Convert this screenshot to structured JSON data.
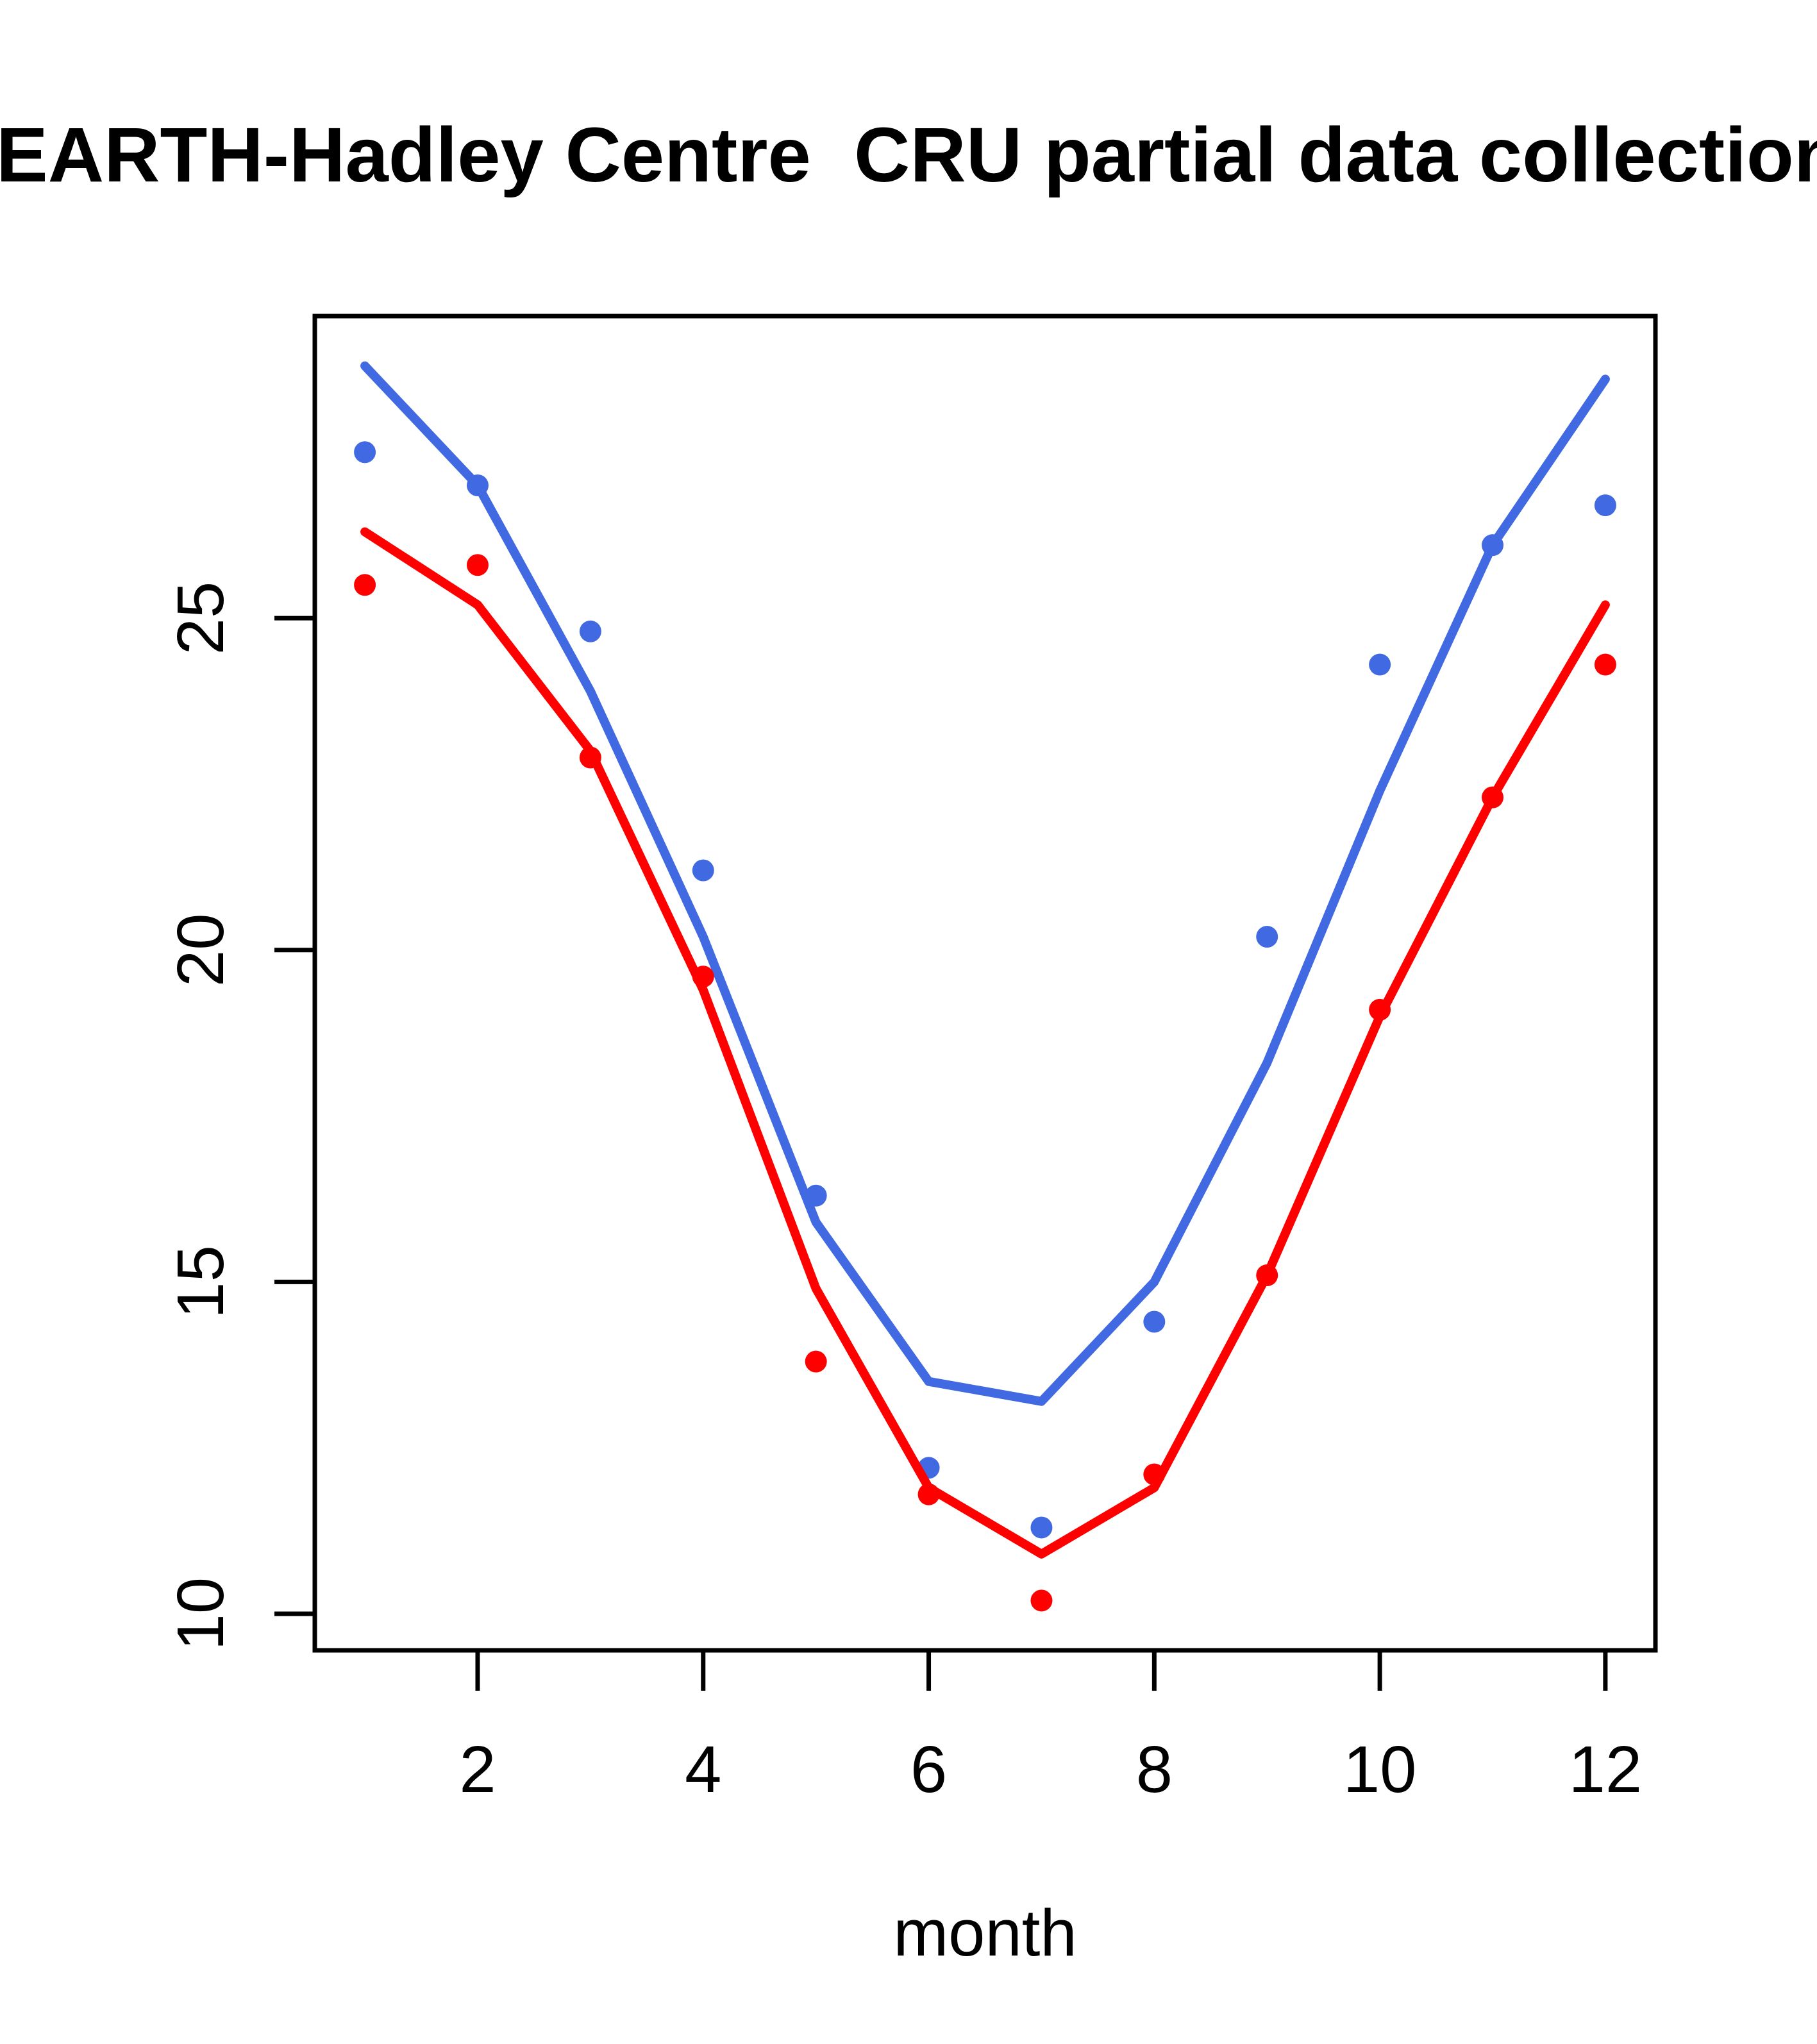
{
  "title": "EARTH-Hadley Centre  CRU partial data collection,",
  "chart_data": {
    "type": "line",
    "title": "EARTH-Hadley Centre  CRU partial data collection,",
    "xlabel": "month",
    "ylabel": "",
    "x": [
      1,
      2,
      3,
      4,
      5,
      6,
      7,
      8,
      9,
      10,
      11,
      12
    ],
    "xticks": [
      2,
      4,
      6,
      8,
      10,
      12
    ],
    "yticks": [
      10,
      15,
      20,
      25
    ],
    "xlim": [
      0.556,
      12.444
    ],
    "ylim": [
      9.45,
      29.55
    ],
    "grid": false,
    "legend": null,
    "colors": {
      "blue": "#4169e1",
      "red": "#ff0000",
      "axis": "#000000",
      "background": "#ffffff"
    },
    "series": [
      {
        "name": "blue-observations",
        "style": "points",
        "color": "#4169e1",
        "values": [
          27.5,
          27.0,
          24.8,
          21.2,
          16.3,
          12.2,
          11.3,
          14.4,
          20.2,
          24.3,
          26.1,
          26.7
        ]
      },
      {
        "name": "blue-fit-line",
        "style": "line",
        "color": "#4169e1",
        "values": [
          28.8,
          27.0,
          23.9,
          20.2,
          15.9,
          13.5,
          13.2,
          15.0,
          18.3,
          22.4,
          26.1,
          28.6
        ]
      },
      {
        "name": "red-observations",
        "style": "points",
        "color": "#ff0000",
        "values": [
          25.5,
          25.8,
          22.9,
          19.6,
          13.8,
          11.8,
          10.2,
          12.1,
          15.1,
          19.1,
          22.3,
          24.3
        ]
      },
      {
        "name": "red-fit-line",
        "style": "line",
        "color": "#ff0000",
        "values": [
          26.3,
          25.2,
          23.0,
          19.4,
          14.9,
          11.9,
          10.9,
          11.9,
          15.1,
          19.0,
          22.3,
          25.2
        ]
      }
    ]
  }
}
